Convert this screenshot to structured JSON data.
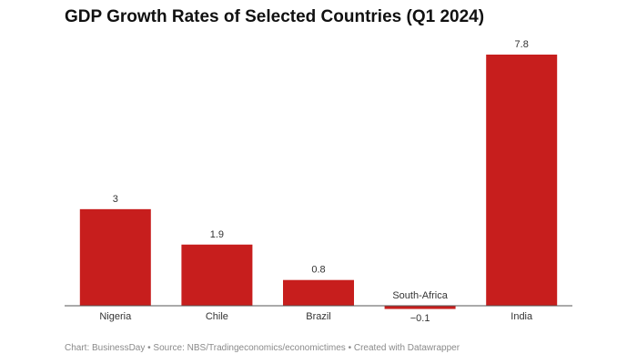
{
  "chart_data": {
    "type": "bar",
    "title": "GDP Growth Rates of Selected Countries (Q1 2024)",
    "categories": [
      "Nigeria",
      "Chile",
      "Brazil",
      "South-Africa",
      "India"
    ],
    "values": [
      3,
      1.9,
      0.8,
      -0.1,
      7.8
    ],
    "value_labels": [
      "3",
      "1.9",
      "0.8",
      "−0.1",
      "7.8"
    ],
    "bar_color": "#c71e1d",
    "xlabel": "",
    "ylabel": "",
    "ylim": [
      -0.1,
      7.8
    ],
    "grid": false,
    "legend": "none"
  },
  "footer": {
    "parts": [
      "Chart: BusinessDay",
      "Source: NBS/Tradingeconomics/economictimes",
      "Created with Datawrapper"
    ],
    "separator": " • ",
    "text": "Chart: BusinessDay • Source: NBS/Tradingeconomics/economictimes • Created with Datawrapper"
  }
}
